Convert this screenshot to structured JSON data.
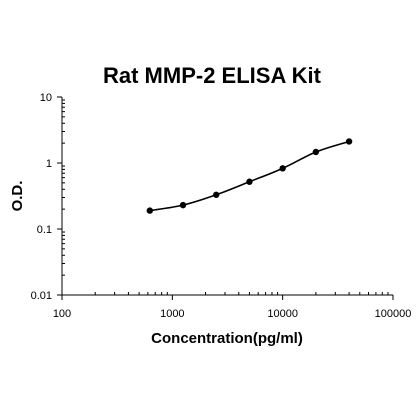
{
  "chart_data": {
    "type": "scatter",
    "title": "Rat MMP-2 ELISA Kit",
    "xlabel": "Concentration(pg/ml)",
    "ylabel": "O.D.",
    "x_scale": "log",
    "y_scale": "log",
    "xlim": [
      100,
      100000
    ],
    "ylim": [
      0.01,
      10
    ],
    "x_ticks": [
      100,
      1000,
      10000,
      100000
    ],
    "x_tick_labels": [
      "100",
      "1000",
      "10000",
      "100000"
    ],
    "y_ticks": [
      0.01,
      0.1,
      1,
      10
    ],
    "y_tick_labels": [
      "0.01",
      "0.1",
      "1",
      "10"
    ],
    "grid": false,
    "legend": "none",
    "fit_curve": true,
    "series": [
      {
        "x": [
          625,
          1250,
          2500,
          5000,
          10000,
          20000,
          40000
        ],
        "y": [
          0.19,
          0.23,
          0.33,
          0.52,
          0.83,
          1.47,
          2.12
        ]
      }
    ],
    "colors": {
      "marker": "#000000",
      "line": "#000000",
      "axes": "#000000"
    }
  }
}
